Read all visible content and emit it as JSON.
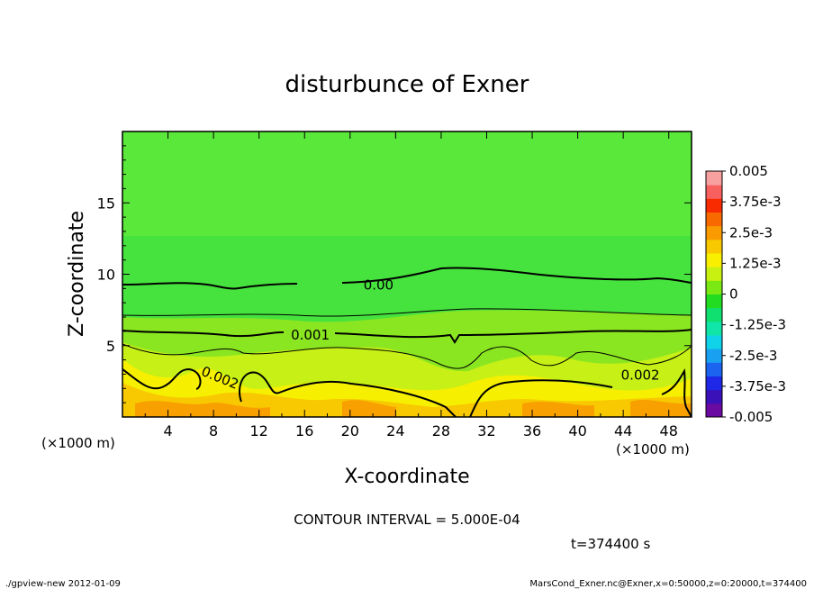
{
  "chart_data": {
    "type": "heatmap",
    "title": "disturbunce of Exner",
    "xlabel": "X-coordinate",
    "ylabel": "Z-coordinate",
    "x_unit_left": "(×1000 m)",
    "x_unit_right": "(×1000 m)",
    "xlim": [
      0,
      50
    ],
    "ylim": [
      0,
      20
    ],
    "x_ticks": [
      4,
      8,
      12,
      16,
      20,
      24,
      28,
      32,
      36,
      40,
      44,
      48
    ],
    "y_ticks": [
      5,
      10,
      15
    ],
    "contour_interval_text": "CONTOUR INTERVAL = 5.000E-04",
    "time_text": "t=374400 s",
    "colorbar": {
      "min": -0.005,
      "max": 0.005,
      "tick_labels": [
        "0.005",
        "3.75e-3",
        "2.5e-3",
        "1.25e-3",
        "0",
        "-1.25e-3",
        "-2.5e-3",
        "-3.75e-3",
        "-0.005"
      ],
      "colors": [
        "#6a0aa0",
        "#3a10b8",
        "#1e28e6",
        "#1c64f0",
        "#1aa0f0",
        "#10d2e8",
        "#10e6a8",
        "#10e070",
        "#22dc22",
        "#7ae812",
        "#c8f010",
        "#f8f000",
        "#f8c800",
        "#f89a00",
        "#f86a00",
        "#f82a00",
        "#f86060",
        "#f8a0a0"
      ]
    },
    "contour_labels": [
      {
        "text": "0.00",
        "x": 22.5,
        "y": 9.3
      },
      {
        "text": "0.001",
        "x": 16.5,
        "y": 5.8
      },
      {
        "text": "0.002",
        "x": 8.6,
        "y": 2.8
      },
      {
        "text": "0.002",
        "x": 45.5,
        "y": 3.0
      }
    ]
  },
  "footer": {
    "left": "./gpview-new   2012-01-09",
    "right": "MarsCond_Exner.nc@Exner,x=0:50000,z=0:20000,t=374400"
  }
}
